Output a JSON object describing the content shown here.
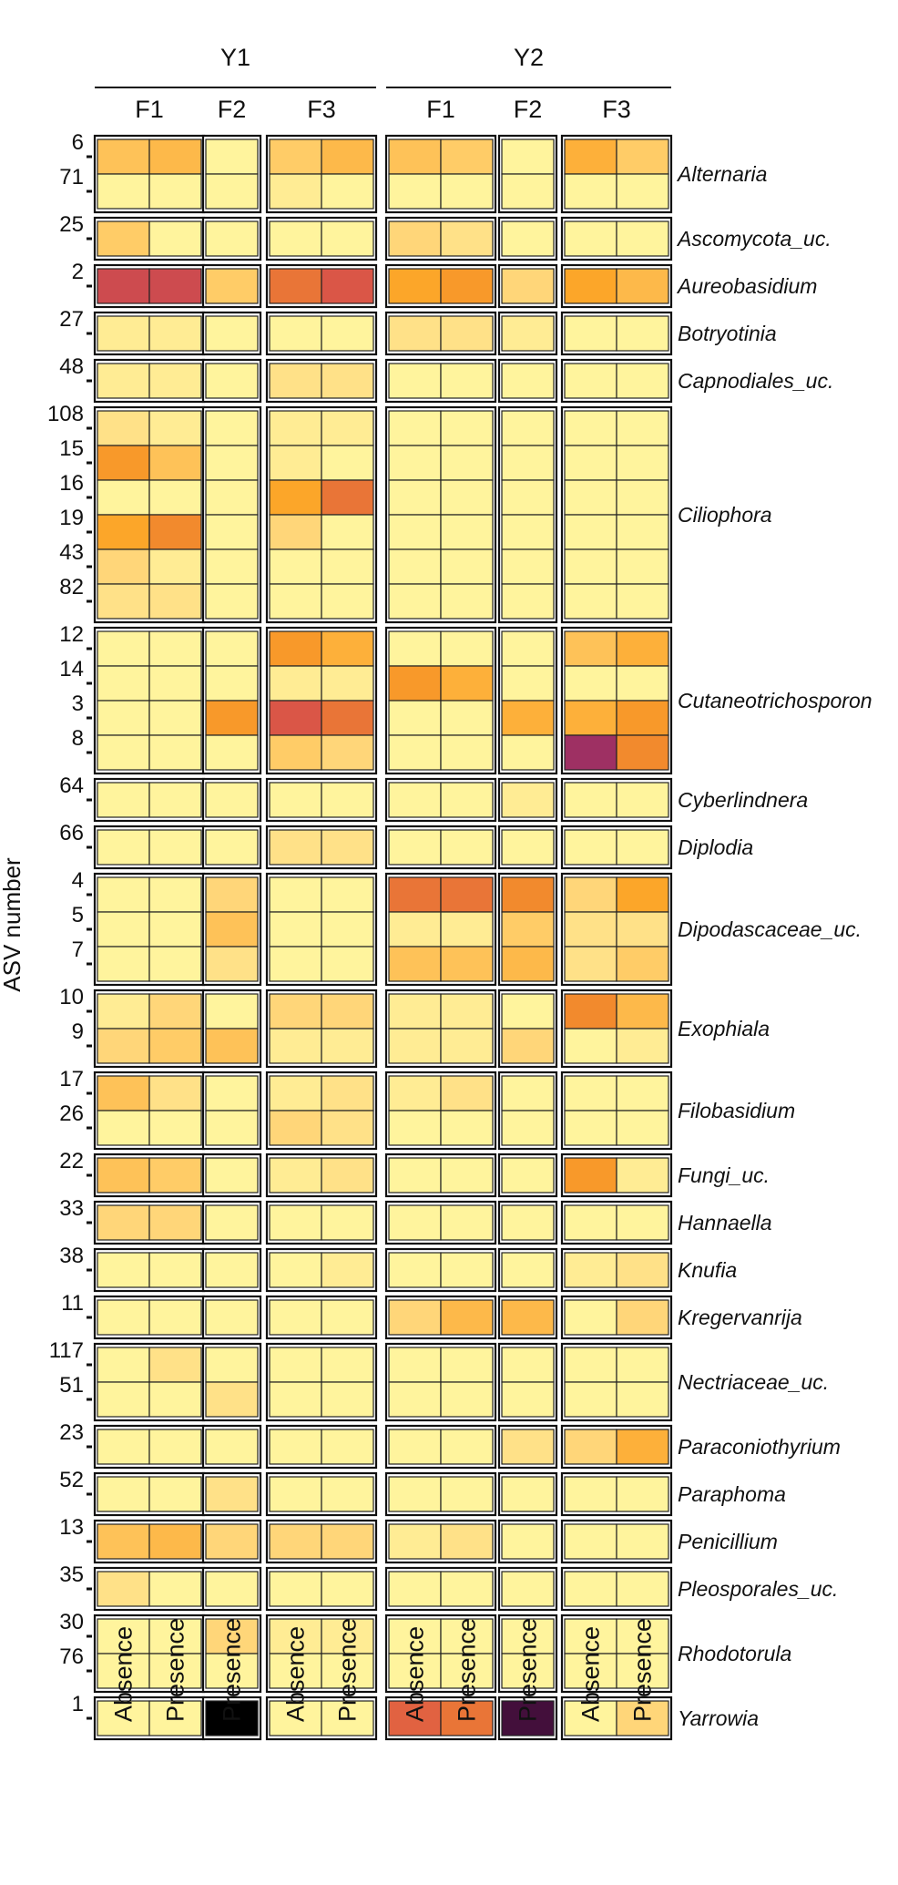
{
  "chart_data": {
    "type": "heatmap",
    "ylabel": "ASV number",
    "years": [
      "Y1",
      "Y2"
    ],
    "columns": [
      {
        "year": "Y1",
        "farm": "F1",
        "treatment": "Absence"
      },
      {
        "year": "Y1",
        "farm": "F1",
        "treatment": "Presence"
      },
      {
        "year": "Y1",
        "farm": "F2",
        "treatment": "Presence"
      },
      {
        "year": "Y1",
        "farm": "F3",
        "treatment": "Absence"
      },
      {
        "year": "Y1",
        "farm": "F3",
        "treatment": "Presence"
      },
      {
        "year": "Y2",
        "farm": "F1",
        "treatment": "Absence"
      },
      {
        "year": "Y2",
        "farm": "F1",
        "treatment": "Presence"
      },
      {
        "year": "Y2",
        "farm": "F2",
        "treatment": "Presence"
      },
      {
        "year": "Y2",
        "farm": "F3",
        "treatment": "Absence"
      },
      {
        "year": "Y2",
        "farm": "F3",
        "treatment": "Presence"
      }
    ],
    "color_scale": [
      "#FFFBA6",
      "#FFEE96",
      "#FFDA80",
      "#FFC75F",
      "#FDB746",
      "#FCA528",
      "#F38C2C",
      "#E3653F",
      "#D6504A",
      "#B23C5E",
      "#7A1B6B",
      "#000000"
    ],
    "groups": [
      {
        "taxon": "Alternaria",
        "rows": [
          {
            "asv": "6",
            "values": [
              0.3,
              0.35,
              0.05,
              0.25,
              0.35,
              0.3,
              0.25,
              0.05,
              0.4,
              0.25
            ]
          },
          {
            "asv": "71",
            "values": [
              0.05,
              0.05,
              0.05,
              0.1,
              0.05,
              0.05,
              0.05,
              0.05,
              0.05,
              0.05
            ]
          }
        ]
      },
      {
        "taxon": "Ascomycota_uc.",
        "rows": [
          {
            "asv": "25",
            "values": [
              0.25,
              0.05,
              0.05,
              0.05,
              0.05,
              0.2,
              0.15,
              0.05,
              0.05,
              0.05
            ]
          }
        ]
      },
      {
        "taxon": "Aureobasidium",
        "rows": [
          {
            "asv": "2",
            "values": [
              0.75,
              0.75,
              0.25,
              0.6,
              0.7,
              0.45,
              0.5,
              0.2,
              0.45,
              0.35
            ]
          }
        ]
      },
      {
        "taxon": "Botryotinia",
        "rows": [
          {
            "asv": "27",
            "values": [
              0.1,
              0.1,
              0.05,
              0.05,
              0.05,
              0.15,
              0.15,
              0.1,
              0.05,
              0.05
            ]
          }
        ]
      },
      {
        "taxon": "Capnodiales_uc.",
        "rows": [
          {
            "asv": "48",
            "values": [
              0.1,
              0.1,
              0.05,
              0.15,
              0.15,
              0.05,
              0.05,
              0.05,
              0.05,
              0.05
            ]
          }
        ]
      },
      {
        "taxon": "Ciliophora",
        "rows": [
          {
            "asv": "108",
            "values": [
              0.15,
              0.1,
              0.05,
              0.1,
              0.1,
              0.05,
              0.05,
              0.05,
              0.05,
              0.05
            ]
          },
          {
            "asv": "15",
            "values": [
              0.5,
              0.3,
              0.05,
              0.1,
              0.05,
              0.05,
              0.05,
              0.05,
              0.05,
              0.05
            ]
          },
          {
            "asv": "16",
            "values": [
              0.05,
              0.05,
              0.05,
              0.45,
              0.6,
              0.05,
              0.05,
              0.05,
              0.05,
              0.05
            ]
          },
          {
            "asv": "19",
            "values": [
              0.45,
              0.55,
              0.05,
              0.2,
              0.05,
              0.05,
              0.05,
              0.05,
              0.05,
              0.05
            ]
          },
          {
            "asv": "43",
            "values": [
              0.2,
              0.1,
              0.05,
              0.05,
              0.05,
              0.05,
              0.05,
              0.05,
              0.05,
              0.05
            ]
          },
          {
            "asv": "82",
            "values": [
              0.15,
              0.15,
              0.05,
              0.05,
              0.05,
              0.05,
              0.05,
              0.05,
              0.05,
              0.05
            ]
          }
        ]
      },
      {
        "taxon": "Cutaneotrichosporon",
        "rows": [
          {
            "asv": "12",
            "values": [
              0.05,
              0.05,
              0.05,
              0.5,
              0.4,
              0.05,
              0.05,
              0.05,
              0.3,
              0.4
            ]
          },
          {
            "asv": "14",
            "values": [
              0.05,
              0.05,
              0.05,
              0.1,
              0.1,
              0.5,
              0.4,
              0.05,
              0.05,
              0.05
            ]
          },
          {
            "asv": "3",
            "values": [
              0.05,
              0.05,
              0.5,
              0.7,
              0.6,
              0.05,
              0.05,
              0.4,
              0.4,
              0.5
            ]
          },
          {
            "asv": "8",
            "values": [
              0.05,
              0.05,
              0.05,
              0.25,
              0.2,
              0.05,
              0.05,
              0.05,
              0.85,
              0.55
            ]
          }
        ]
      },
      {
        "taxon": "Cyberlindnera",
        "rows": [
          {
            "asv": "64",
            "values": [
              0.05,
              0.05,
              0.05,
              0.05,
              0.05,
              0.05,
              0.05,
              0.1,
              0.05,
              0.05
            ]
          }
        ]
      },
      {
        "taxon": "Diplodia",
        "rows": [
          {
            "asv": "66",
            "values": [
              0.05,
              0.05,
              0.05,
              0.15,
              0.15,
              0.05,
              0.05,
              0.05,
              0.05,
              0.05
            ]
          }
        ]
      },
      {
        "taxon": "Dipodascaceae_uc.",
        "rows": [
          {
            "asv": "4",
            "values": [
              0.05,
              0.05,
              0.2,
              0.05,
              0.05,
              0.6,
              0.6,
              0.55,
              0.2,
              0.45
            ]
          },
          {
            "asv": "5",
            "values": [
              0.05,
              0.05,
              0.3,
              0.05,
              0.05,
              0.1,
              0.1,
              0.25,
              0.15,
              0.15
            ]
          },
          {
            "asv": "7",
            "values": [
              0.05,
              0.05,
              0.15,
              0.05,
              0.05,
              0.3,
              0.3,
              0.35,
              0.15,
              0.25
            ]
          }
        ]
      },
      {
        "taxon": "Exophiala",
        "rows": [
          {
            "asv": "10",
            "values": [
              0.1,
              0.2,
              0.05,
              0.2,
              0.2,
              0.1,
              0.1,
              0.05,
              0.55,
              0.35
            ]
          },
          {
            "asv": "9",
            "values": [
              0.2,
              0.25,
              0.3,
              0.1,
              0.1,
              0.1,
              0.1,
              0.2,
              0.05,
              0.1
            ]
          }
        ]
      },
      {
        "taxon": "Filobasidium",
        "rows": [
          {
            "asv": "17",
            "values": [
              0.3,
              0.15,
              0.05,
              0.1,
              0.15,
              0.1,
              0.15,
              0.05,
              0.05,
              0.05
            ]
          },
          {
            "asv": "26",
            "values": [
              0.05,
              0.05,
              0.05,
              0.2,
              0.15,
              0.05,
              0.05,
              0.05,
              0.05,
              0.05
            ]
          }
        ]
      },
      {
        "taxon": "Fungi_uc.",
        "rows": [
          {
            "asv": "22",
            "values": [
              0.3,
              0.25,
              0.05,
              0.1,
              0.15,
              0.05,
              0.05,
              0.05,
              0.5,
              0.1
            ]
          }
        ]
      },
      {
        "taxon": "Hannaella",
        "rows": [
          {
            "asv": "33",
            "values": [
              0.2,
              0.2,
              0.05,
              0.05,
              0.05,
              0.05,
              0.05,
              0.05,
              0.05,
              0.05
            ]
          }
        ]
      },
      {
        "taxon": "Knufia",
        "rows": [
          {
            "asv": "38",
            "values": [
              0.05,
              0.05,
              0.05,
              0.05,
              0.1,
              0.05,
              0.05,
              0.05,
              0.1,
              0.15
            ]
          }
        ]
      },
      {
        "taxon": "Kregervanrija",
        "rows": [
          {
            "asv": "11",
            "values": [
              0.05,
              0.05,
              0.05,
              0.05,
              0.05,
              0.2,
              0.35,
              0.35,
              0.05,
              0.2
            ]
          }
        ]
      },
      {
        "taxon": "Nectriaceae_uc.",
        "rows": [
          {
            "asv": "117",
            "values": [
              0.05,
              0.15,
              0.05,
              0.05,
              0.05,
              0.05,
              0.05,
              0.05,
              0.05,
              0.05
            ]
          },
          {
            "asv": "51",
            "values": [
              0.05,
              0.05,
              0.15,
              0.05,
              0.05,
              0.05,
              0.05,
              0.05,
              0.05,
              0.05
            ]
          }
        ]
      },
      {
        "taxon": "Paraconiothyrium",
        "rows": [
          {
            "asv": "23",
            "values": [
              0.05,
              0.05,
              0.05,
              0.05,
              0.05,
              0.05,
              0.05,
              0.15,
              0.2,
              0.4
            ]
          }
        ]
      },
      {
        "taxon": "Paraphoma",
        "rows": [
          {
            "asv": "52",
            "values": [
              0.05,
              0.05,
              0.15,
              0.05,
              0.05,
              0.05,
              0.05,
              0.05,
              0.05,
              0.05
            ]
          }
        ]
      },
      {
        "taxon": "Penicillium",
        "rows": [
          {
            "asv": "13",
            "values": [
              0.3,
              0.35,
              0.2,
              0.2,
              0.2,
              0.1,
              0.15,
              0.05,
              0.05,
              0.05
            ]
          }
        ]
      },
      {
        "taxon": "Pleosporales_uc.",
        "rows": [
          {
            "asv": "35",
            "values": [
              0.15,
              0.05,
              0.05,
              0.05,
              0.05,
              0.05,
              0.05,
              0.05,
              0.05,
              0.05
            ]
          }
        ]
      },
      {
        "taxon": "Rhodotorula",
        "rows": [
          {
            "asv": "30",
            "values": [
              0.05,
              0.05,
              0.2,
              0.1,
              0.1,
              0.05,
              0.05,
              0.05,
              0.05,
              0.05
            ]
          },
          {
            "asv": "76",
            "values": [
              0.05,
              0.05,
              0.05,
              0.05,
              0.05,
              0.05,
              0.05,
              0.05,
              0.05,
              0.05
            ]
          }
        ]
      },
      {
        "taxon": "Yarrowia",
        "rows": [
          {
            "asv": "1",
            "values": [
              0.05,
              0.05,
              1.0,
              0.05,
              0.05,
              0.65,
              0.6,
              0.95,
              0.05,
              0.2
            ]
          }
        ]
      }
    ]
  }
}
